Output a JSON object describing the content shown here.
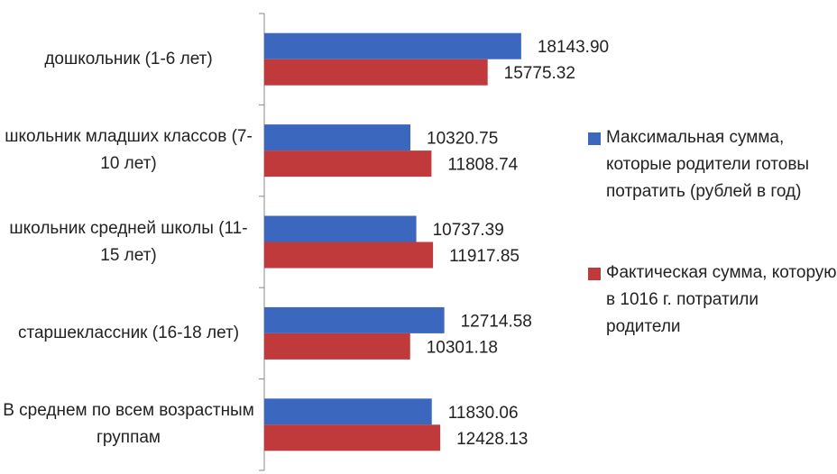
{
  "chart_data": {
    "type": "hbar",
    "categories": [
      "дошкольник (1-6 лет)",
      "школьник младших классов (7-10 лет)",
      "школьник средней школы (11-15 лет)",
      "старшеклассник (16-18 лет)",
      "В среднем по всем возрастным группам"
    ],
    "series": [
      {
        "name": "Максимальная сумма, которые родители готовы потратить (рублей в год)",
        "color": "#3b67bf",
        "values": [
          18143.9,
          10320.75,
          10737.39,
          12714.58,
          11830.06
        ],
        "value_labels": [
          "18143.90",
          "10320.75",
          "10737.39",
          "12714.58",
          "11830.06"
        ]
      },
      {
        "name": "Фактическая сумма, которую в 1016 г. потратили родители",
        "color": "#c0393b",
        "values": [
          15775.32,
          11808.74,
          11917.85,
          10301.18,
          12428.13
        ],
        "value_labels": [
          "15775.32",
          "11808.74",
          "11917.85",
          "10301.18",
          "12428.13"
        ]
      }
    ],
    "xlim": [
      0,
      20000
    ],
    "legend": "right"
  }
}
